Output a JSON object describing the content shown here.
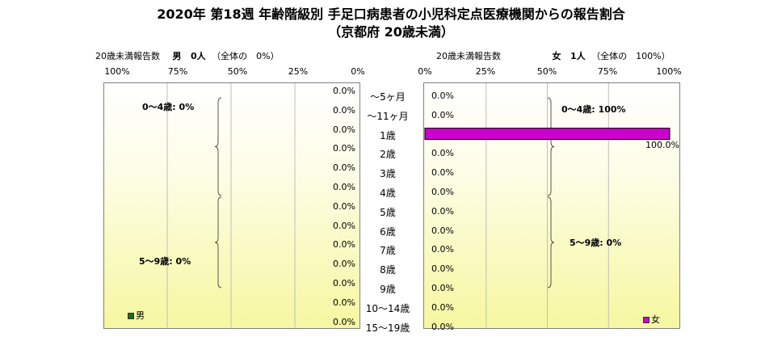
{
  "title_line1": "2020年 第18週 年齢階級別 手足口病患者の小児科定点医療機関からの報告割合",
  "title_line2": "（京都府 20歳未満）",
  "left_header": {
    "label": "20歳未満報告数",
    "sex": "男",
    "count": "0人",
    "share": "（全体の　0%）"
  },
  "right_header": {
    "label": "20歳未満報告数",
    "sex": "女",
    "count": "1人",
    "share": "（全体の　100%）"
  },
  "left_ticks": [
    "100%",
    "75%",
    "50%",
    "25%",
    "0%"
  ],
  "right_ticks": [
    "0%",
    "25%",
    "50%",
    "75%",
    "100%"
  ],
  "left_groups": [
    "0～4歳: 0%",
    "5～9歳: 0%"
  ],
  "right_groups": [
    "0～4歳: 100%",
    "5～9歳: 0%"
  ],
  "legend": {
    "male": "男",
    "female": "女"
  },
  "colors": {
    "male": "#1e6b1e",
    "female": "#cc00cc"
  },
  "chart_data": {
    "type": "bar",
    "orientation": "horizontal",
    "categories": [
      "～5ヶ月",
      "～11ヶ月",
      "1歳",
      "2歳",
      "3歳",
      "4歳",
      "5歳",
      "6歳",
      "7歳",
      "8歳",
      "9歳",
      "10～14歳",
      "15～19歳"
    ],
    "series": [
      {
        "name": "男",
        "values": [
          0,
          0,
          0,
          0,
          0,
          0,
          0,
          0,
          0,
          0,
          0,
          0,
          0
        ],
        "labels": [
          "0.0%",
          "0.0%",
          "0.0%",
          "0.0%",
          "0.0%",
          "0.0%",
          "0.0%",
          "0.0%",
          "0.0%",
          "0.0%",
          "0.0%",
          "0.0%",
          "0.0%"
        ]
      },
      {
        "name": "女",
        "values": [
          0,
          0,
          100,
          0,
          0,
          0,
          0,
          0,
          0,
          0,
          0,
          0,
          0
        ],
        "labels": [
          "0.0%",
          "0.0%",
          "100.0%",
          "0.0%",
          "0.0%",
          "0.0%",
          "0.0%",
          "0.0%",
          "0.0%",
          "0.0%",
          "0.0%",
          "0.0%",
          "0.0%"
        ]
      }
    ],
    "xlim": [
      0,
      100
    ],
    "grid": true
  }
}
